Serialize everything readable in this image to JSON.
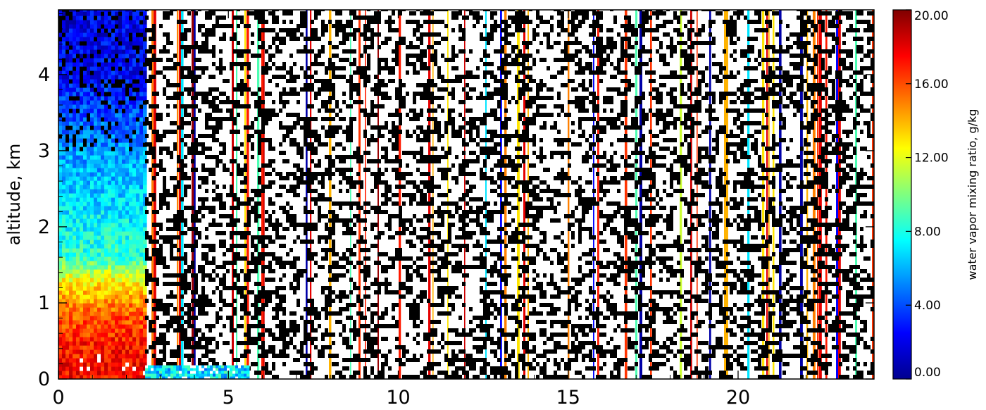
{
  "chart_data": {
    "type": "heatmap",
    "title": "",
    "xlabel": "",
    "ylabel": "altitude, km",
    "colorbar_label": "water vapor mixing ratio, g/kg",
    "x_ticks": [
      0,
      5,
      10,
      15,
      20
    ],
    "y_ticks": [
      0,
      1,
      2,
      3,
      4
    ],
    "colorbar_ticks": [
      "0.00",
      "4.00",
      "8.00",
      "12.00",
      "16.00",
      "20.00"
    ],
    "xlim": [
      0,
      24
    ],
    "ylim": [
      0,
      4.85
    ],
    "clim": [
      0,
      20
    ],
    "colormap": "jet",
    "missing_color": "#000000",
    "background_color": "#ffffff",
    "valid_profile_block": {
      "x_range": [
        0,
        2.55
      ],
      "profile_values": [
        {
          "alt": 0.0,
          "value": 17.5
        },
        {
          "alt": 0.5,
          "value": 17.0
        },
        {
          "alt": 0.9,
          "value": 15.5
        },
        {
          "alt": 1.3,
          "value": 12.5
        },
        {
          "alt": 1.6,
          "value": 8.5
        },
        {
          "alt": 2.0,
          "value": 7.5
        },
        {
          "alt": 2.5,
          "value": 6.5
        },
        {
          "alt": 3.0,
          "value": 5.5
        },
        {
          "alt": 3.5,
          "value": 4.0
        },
        {
          "alt": 4.0,
          "value": 2.5
        },
        {
          "alt": 4.85,
          "value": 2.0
        }
      ]
    },
    "surface_strip": {
      "x_range": [
        2.55,
        5.6
      ],
      "alt_range": [
        0,
        0.18
      ],
      "value": 7.0
    }
  }
}
